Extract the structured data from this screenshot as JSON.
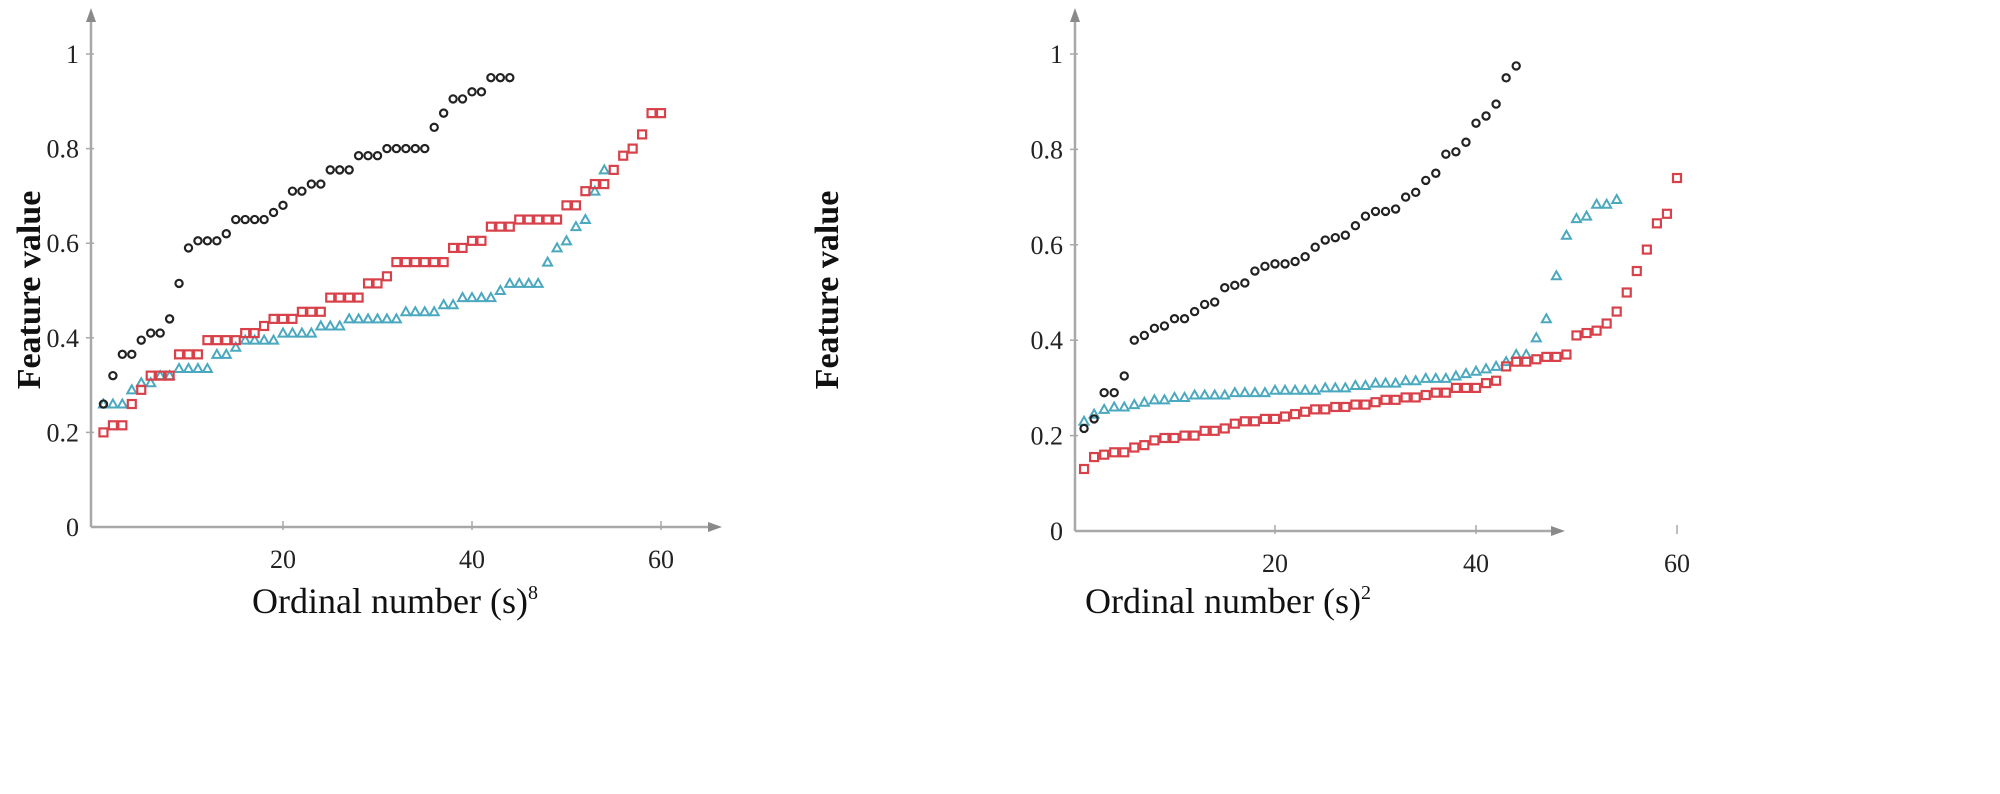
{
  "chart_data": [
    {
      "type": "scatter",
      "title": "",
      "xlabel": "Ordinal number (s)",
      "xlabel_superscript": "8",
      "ylabel": "Feature value",
      "xlim": [
        0,
        65
      ],
      "ylim": [
        0,
        1.05
      ],
      "xticks": [
        20,
        40,
        60
      ],
      "yticks": [
        0,
        0.2,
        0.4,
        0.6,
        0.8,
        1
      ],
      "ytick_labels": [
        "0",
        "0.2",
        "0.4",
        "0.6",
        "0.8",
        "1"
      ],
      "xtick_labels": [
        "20",
        "40",
        "60"
      ],
      "grid": false,
      "legend": null,
      "series": [
        {
          "name": "circle-series",
          "marker": "circle",
          "color": "#222222",
          "x": [
            1,
            2,
            3,
            4,
            5,
            6,
            7,
            8,
            9,
            10,
            11,
            12,
            13,
            14,
            15,
            16,
            17,
            18,
            19,
            20,
            21,
            22,
            23,
            24,
            25,
            26,
            27,
            28,
            29,
            30,
            31,
            32,
            33,
            34,
            35,
            36,
            37,
            38,
            39,
            40,
            41,
            42,
            43,
            44
          ],
          "y": [
            0.26,
            0.32,
            0.365,
            0.365,
            0.395,
            0.41,
            0.41,
            0.44,
            0.515,
            0.59,
            0.605,
            0.605,
            0.605,
            0.62,
            0.65,
            0.65,
            0.65,
            0.65,
            0.665,
            0.68,
            0.71,
            0.71,
            0.725,
            0.725,
            0.755,
            0.755,
            0.755,
            0.785,
            0.785,
            0.785,
            0.8,
            0.8,
            0.8,
            0.8,
            0.8,
            0.845,
            0.875,
            0.905,
            0.905,
            0.92,
            0.92,
            0.95,
            0.95,
            0.95
          ]
        },
        {
          "name": "square-series",
          "marker": "square",
          "color": "#d9414a",
          "x": [
            1,
            2,
            3,
            4,
            5,
            6,
            7,
            8,
            9,
            10,
            11,
            12,
            13,
            14,
            15,
            16,
            17,
            18,
            19,
            20,
            21,
            22,
            23,
            24,
            25,
            26,
            27,
            28,
            29,
            30,
            31,
            32,
            33,
            34,
            35,
            36,
            37,
            38,
            39,
            40,
            41,
            42,
            43,
            44,
            45,
            46,
            47,
            48,
            49,
            50,
            51,
            52,
            53,
            54,
            55,
            56,
            57,
            58,
            59,
            60
          ],
          "y": [
            0.2,
            0.215,
            0.215,
            0.26,
            0.29,
            0.32,
            0.32,
            0.32,
            0.365,
            0.365,
            0.365,
            0.395,
            0.395,
            0.395,
            0.395,
            0.41,
            0.41,
            0.425,
            0.44,
            0.44,
            0.44,
            0.455,
            0.455,
            0.455,
            0.485,
            0.485,
            0.485,
            0.485,
            0.515,
            0.515,
            0.53,
            0.56,
            0.56,
            0.56,
            0.56,
            0.56,
            0.56,
            0.59,
            0.59,
            0.605,
            0.605,
            0.635,
            0.635,
            0.635,
            0.65,
            0.65,
            0.65,
            0.65,
            0.65,
            0.68,
            0.68,
            0.71,
            0.725,
            0.725,
            0.755,
            0.785,
            0.8,
            0.83,
            0.875,
            0.875
          ]
        },
        {
          "name": "triangle-series",
          "marker": "triangle",
          "color": "#4aa8bf",
          "x": [
            1,
            2,
            3,
            4,
            5,
            6,
            7,
            8,
            9,
            10,
            11,
            12,
            13,
            14,
            15,
            16,
            17,
            18,
            19,
            20,
            21,
            22,
            23,
            24,
            25,
            26,
            27,
            28,
            29,
            30,
            31,
            32,
            33,
            34,
            35,
            36,
            37,
            38,
            39,
            40,
            41,
            42,
            43,
            44,
            45,
            46,
            47,
            48,
            49,
            50,
            51,
            52,
            53,
            54
          ],
          "y": [
            0.26,
            0.26,
            0.26,
            0.29,
            0.305,
            0.305,
            0.32,
            0.32,
            0.335,
            0.335,
            0.335,
            0.335,
            0.365,
            0.365,
            0.38,
            0.395,
            0.395,
            0.395,
            0.395,
            0.41,
            0.41,
            0.41,
            0.41,
            0.425,
            0.425,
            0.425,
            0.44,
            0.44,
            0.44,
            0.44,
            0.44,
            0.44,
            0.455,
            0.455,
            0.455,
            0.455,
            0.47,
            0.47,
            0.485,
            0.485,
            0.485,
            0.485,
            0.5,
            0.515,
            0.515,
            0.515,
            0.515,
            0.56,
            0.59,
            0.605,
            0.635,
            0.65,
            0.71,
            0.755
          ]
        }
      ]
    },
    {
      "type": "scatter",
      "title": "",
      "xlabel": "Ordinal number (s)",
      "xlabel_superscript": "2",
      "ylabel": "Feature value",
      "xlim": [
        0,
        65
      ],
      "ylim": [
        0,
        1.05
      ],
      "xticks": [
        20,
        40,
        60
      ],
      "yticks": [
        0,
        0.2,
        0.4,
        0.6,
        0.8,
        1
      ],
      "ytick_labels": [
        "0",
        "0.2",
        "0.4",
        "0.6",
        "0.8",
        "1"
      ],
      "xtick_labels": [
        "20",
        "40",
        "60"
      ],
      "grid": false,
      "legend": null,
      "series": [
        {
          "name": "circle-series",
          "marker": "circle",
          "color": "#222222",
          "x": [
            1,
            2,
            3,
            4,
            5,
            6,
            7,
            8,
            9,
            10,
            11,
            12,
            13,
            14,
            15,
            16,
            17,
            18,
            19,
            20,
            21,
            22,
            23,
            24,
            25,
            26,
            27,
            28,
            29,
            30,
            31,
            32,
            33,
            34,
            35,
            36,
            37,
            38,
            39,
            40,
            41,
            42,
            43,
            44
          ],
          "y": [
            0.215,
            0.235,
            0.29,
            0.29,
            0.325,
            0.4,
            0.41,
            0.425,
            0.43,
            0.445,
            0.445,
            0.46,
            0.475,
            0.48,
            0.51,
            0.515,
            0.52,
            0.545,
            0.555,
            0.56,
            0.56,
            0.565,
            0.575,
            0.595,
            0.61,
            0.615,
            0.62,
            0.64,
            0.66,
            0.67,
            0.67,
            0.675,
            0.7,
            0.71,
            0.735,
            0.75,
            0.79,
            0.795,
            0.815,
            0.855,
            0.87,
            0.895,
            0.95,
            0.975
          ]
        },
        {
          "name": "square-series",
          "marker": "square",
          "color": "#d9414a",
          "x": [
            1,
            2,
            3,
            4,
            5,
            6,
            7,
            8,
            9,
            10,
            11,
            12,
            13,
            14,
            15,
            16,
            17,
            18,
            19,
            20,
            21,
            22,
            23,
            24,
            25,
            26,
            27,
            28,
            29,
            30,
            31,
            32,
            33,
            34,
            35,
            36,
            37,
            38,
            39,
            40,
            41,
            42,
            43,
            44,
            45,
            46,
            47,
            48,
            49,
            50,
            51,
            52,
            53,
            54,
            55,
            56,
            57,
            58,
            59,
            60
          ],
          "y": [
            0.13,
            0.155,
            0.16,
            0.165,
            0.165,
            0.175,
            0.18,
            0.19,
            0.195,
            0.195,
            0.2,
            0.2,
            0.21,
            0.21,
            0.215,
            0.225,
            0.23,
            0.23,
            0.235,
            0.235,
            0.24,
            0.245,
            0.25,
            0.255,
            0.255,
            0.26,
            0.26,
            0.265,
            0.265,
            0.27,
            0.275,
            0.275,
            0.28,
            0.28,
            0.285,
            0.29,
            0.29,
            0.3,
            0.3,
            0.3,
            0.31,
            0.315,
            0.345,
            0.355,
            0.355,
            0.36,
            0.365,
            0.365,
            0.37,
            0.41,
            0.415,
            0.42,
            0.435,
            0.46,
            0.5,
            0.545,
            0.59,
            0.645,
            0.665,
            0.74
          ]
        },
        {
          "name": "triangle-series",
          "marker": "triangle",
          "color": "#4aa8bf",
          "x": [
            1,
            2,
            3,
            4,
            5,
            6,
            7,
            8,
            9,
            10,
            11,
            12,
            13,
            14,
            15,
            16,
            17,
            18,
            19,
            20,
            21,
            22,
            23,
            24,
            25,
            26,
            27,
            28,
            29,
            30,
            31,
            32,
            33,
            34,
            35,
            36,
            37,
            38,
            39,
            40,
            41,
            42,
            43,
            44,
            45,
            46,
            47,
            48,
            49,
            50,
            51,
            52,
            53,
            54
          ],
          "y": [
            0.23,
            0.245,
            0.255,
            0.26,
            0.26,
            0.265,
            0.27,
            0.275,
            0.275,
            0.28,
            0.28,
            0.285,
            0.285,
            0.285,
            0.285,
            0.29,
            0.29,
            0.29,
            0.29,
            0.295,
            0.295,
            0.295,
            0.295,
            0.295,
            0.3,
            0.3,
            0.3,
            0.305,
            0.305,
            0.31,
            0.31,
            0.31,
            0.315,
            0.315,
            0.32,
            0.32,
            0.32,
            0.325,
            0.33,
            0.335,
            0.34,
            0.345,
            0.355,
            0.37,
            0.37,
            0.405,
            0.445,
            0.535,
            0.62,
            0.655,
            0.66,
            0.685,
            0.685,
            0.695
          ]
        }
      ]
    }
  ]
}
